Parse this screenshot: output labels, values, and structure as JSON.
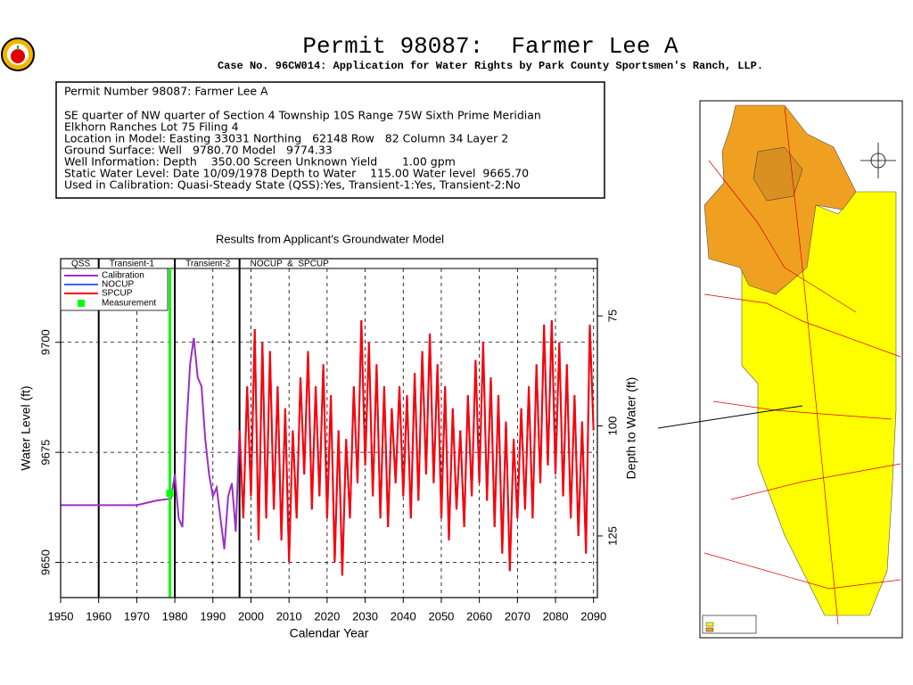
{
  "title": "Permit 98087:  Farmer Lee A",
  "subtitle": "Case No. 96CW014: Application for Water Rights by Park County Sportsmen's Ranch, LLP.",
  "info_lines": [
    "Permit Number 98087: Farmer Lee A",
    "SE quarter of NW quarter of Section 4 Township 10S Range 75W Sixth Prime Meridian",
    "Elkhorn Ranches Lot 75 Filing 4",
    "Location in Model: Easting 33031 Northing   62148 Row   82 Column 34 Layer 2",
    "Ground Surface: Well   9780.70 Model   9774.33",
    "Well Information: Depth    350.00 Screen Unknown Yield       1.00 gpm",
    "Static Water Level: Date 10/09/1978 Depth to Water    115.00 Water level  9665.70",
    "Used in Calibration: Quasi-Steady State (QSS):Yes, Transient-1:Yes, Transient-2:No"
  ],
  "chart_data": {
    "type": "line",
    "title": "Results from Applicant's Groundwater Model",
    "xlabel": "Calendar Year",
    "ylabel": "Water Level (ft)",
    "y2label": "Depth to Water (ft)",
    "xlim": [
      1950,
      2091
    ],
    "xticks": [
      1950,
      1960,
      1970,
      1980,
      1990,
      2000,
      2010,
      2020,
      2030,
      2040,
      2050,
      2060,
      2070,
      2080,
      2090
    ],
    "ylim": [
      9642,
      9719
    ],
    "yticks": [
      9650,
      9675,
      9700
    ],
    "y2lim": [
      139,
      62
    ],
    "y2ticks": [
      75,
      100,
      125
    ],
    "grid": true,
    "periods": [
      {
        "label": "QSS",
        "start": 1950,
        "end": 1960
      },
      {
        "label": "Transient-1",
        "start": 1960,
        "end": 1980
      },
      {
        "label": "Transient-2",
        "start": 1980,
        "end": 1997
      },
      {
        "label": "NOCUP  &  SPCUP",
        "start": 1997,
        "end": 2091
      }
    ],
    "series": [
      {
        "name": "Calibration",
        "color": "#9b30c8",
        "x": [
          1950,
          1960,
          1970,
          1975,
          1979,
          1980,
          1981,
          1982,
          1983,
          1984,
          1985,
          1986,
          1987,
          1988,
          1989,
          1990,
          1991,
          1992,
          1993,
          1994,
          1995,
          1996,
          1997
        ],
        "values": [
          9663,
          9663,
          9663,
          9664,
          9664.5,
          9670,
          9660,
          9658,
          9680,
          9695,
          9701,
          9692,
          9690,
          9678,
          9670,
          9665,
          9667,
          9660,
          9653,
          9665,
          9668,
          9657,
          9680
        ]
      },
      {
        "name": "NOCUP",
        "color": "#4060ff",
        "x": [
          1997,
          1998,
          1999,
          2000,
          2001,
          2002,
          2003,
          2004,
          2005,
          2006,
          2007,
          2008,
          2009,
          2010,
          2011,
          2012,
          2013,
          2014,
          2015,
          2016,
          2017,
          2018,
          2019,
          2020,
          2021,
          2022,
          2023,
          2024,
          2025,
          2026,
          2027,
          2028,
          2029,
          2030,
          2031,
          2032,
          2033,
          2034,
          2035,
          2036,
          2037,
          2038,
          2039,
          2040,
          2041,
          2042,
          2043,
          2044,
          2045,
          2046,
          2047,
          2048,
          2049,
          2050,
          2051,
          2052,
          2053,
          2054,
          2055,
          2056,
          2057,
          2058,
          2059,
          2060,
          2061,
          2062,
          2063,
          2064,
          2065,
          2066,
          2067,
          2068,
          2069,
          2070,
          2071,
          2072,
          2073,
          2074,
          2075,
          2076,
          2077,
          2078,
          2079,
          2080,
          2081,
          2082,
          2083,
          2084,
          2085,
          2086,
          2087,
          2088,
          2089,
          2090
        ],
        "values": [
          9680,
          9660,
          9690,
          9665,
          9703,
          9655,
          9700,
          9660,
          9698,
          9662,
          9690,
          9655,
          9685,
          9650,
          9680,
          9660,
          9692,
          9670,
          9698,
          9662,
          9690,
          9665,
          9695,
          9660,
          9688,
          9650,
          9680,
          9647,
          9678,
          9660,
          9690,
          9668,
          9705,
          9672,
          9700,
          9665,
          9695,
          9660,
          9690,
          9658,
          9685,
          9668,
          9690,
          9665,
          9688,
          9660,
          9693,
          9664,
          9698,
          9670,
          9702,
          9668,
          9695,
          9660,
          9690,
          9655,
          9685,
          9662,
          9680,
          9658,
          9688,
          9665,
          9696,
          9668,
          9700,
          9664,
          9692,
          9658,
          9688,
          9652,
          9682,
          9648,
          9678,
          9660,
          9685,
          9662,
          9690,
          9660,
          9695,
          9668,
          9704,
          9672,
          9705,
          9670,
          9700,
          9665,
          9695,
          9660,
          9688,
          9656,
          9682,
          9652,
          9704,
          9680
        ]
      },
      {
        "name": "SPCUP",
        "color": "#ff0000",
        "x": [
          1997,
          1998,
          1999,
          2000,
          2001,
          2002,
          2003,
          2004,
          2005,
          2006,
          2007,
          2008,
          2009,
          2010,
          2011,
          2012,
          2013,
          2014,
          2015,
          2016,
          2017,
          2018,
          2019,
          2020,
          2021,
          2022,
          2023,
          2024,
          2025,
          2026,
          2027,
          2028,
          2029,
          2030,
          2031,
          2032,
          2033,
          2034,
          2035,
          2036,
          2037,
          2038,
          2039,
          2040,
          2041,
          2042,
          2043,
          2044,
          2045,
          2046,
          2047,
          2048,
          2049,
          2050,
          2051,
          2052,
          2053,
          2054,
          2055,
          2056,
          2057,
          2058,
          2059,
          2060,
          2061,
          2062,
          2063,
          2064,
          2065,
          2066,
          2067,
          2068,
          2069,
          2070,
          2071,
          2072,
          2073,
          2074,
          2075,
          2076,
          2077,
          2078,
          2079,
          2080,
          2081,
          2082,
          2083,
          2084,
          2085,
          2086,
          2087,
          2088,
          2089,
          2090
        ],
        "values": [
          9680,
          9660,
          9690,
          9665,
          9703,
          9655,
          9700,
          9660,
          9698,
          9662,
          9690,
          9655,
          9685,
          9650,
          9680,
          9660,
          9692,
          9670,
          9698,
          9662,
          9690,
          9665,
          9695,
          9660,
          9688,
          9650,
          9680,
          9647,
          9678,
          9660,
          9690,
          9668,
          9705,
          9672,
          9700,
          9665,
          9695,
          9660,
          9690,
          9658,
          9685,
          9668,
          9690,
          9665,
          9688,
          9660,
          9693,
          9664,
          9698,
          9670,
          9702,
          9668,
          9695,
          9660,
          9690,
          9655,
          9685,
          9662,
          9680,
          9658,
          9688,
          9665,
          9696,
          9668,
          9700,
          9664,
          9692,
          9658,
          9688,
          9652,
          9682,
          9648,
          9678,
          9660,
          9685,
          9662,
          9690,
          9660,
          9695,
          9668,
          9704,
          9672,
          9705,
          9670,
          9700,
          9665,
          9695,
          9660,
          9688,
          9656,
          9682,
          9652,
          9704,
          9680
        ]
      }
    ],
    "measurement": {
      "name": "Measurement",
      "color": "#00ff00",
      "x": 1978.7,
      "value": 9665.7
    }
  }
}
